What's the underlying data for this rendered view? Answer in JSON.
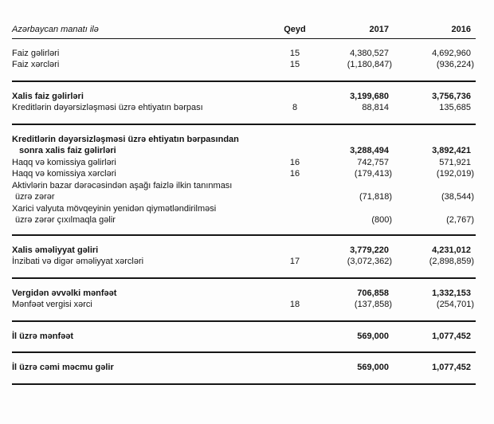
{
  "header": {
    "currency_note": "Azərbaycan manatı ilə",
    "note_col": "Qeyd",
    "year1": "2017",
    "year2": "2016"
  },
  "rows": [
    {
      "label": "Faiz gəlirləri",
      "note": "15",
      "v2017": "4,380,527",
      "v2016": "4,692,960"
    },
    {
      "label": "Faiz xərcləri",
      "note": "15",
      "v2017": "(1,180,847)",
      "v2016": "(936,224)"
    },
    {
      "label": "Xalis faiz gəlirləri",
      "note": "",
      "v2017": "3,199,680",
      "v2016": "3,756,736"
    },
    {
      "label": "Kreditlərin dəyərsizləşməsi üzrə ehtiyatın bərpası",
      "note": "8",
      "v2017": "88,814",
      "v2016": "135,685"
    },
    {
      "label": "Kreditlərin dəyərsizləşməsi üzrə ehtiyatın bərpasından",
      "label2": "sonra xalis faiz gəlirləri",
      "note": "",
      "v2017": "3,288,494",
      "v2016": "3,892,421"
    },
    {
      "label": "Haqq və komissiya gəlirləri",
      "note": "16",
      "v2017": "742,757",
      "v2016": "571,921"
    },
    {
      "label": "Haqq və komissiya xərcləri",
      "note": "16",
      "v2017": "(179,413)",
      "v2016": "(192,019)"
    },
    {
      "label": "Aktivlərin bazar dərəcəsindən aşağı faizlə ilkin tanınması",
      "label2": "üzrə zərər",
      "note": "",
      "v2017": "(71,818)",
      "v2016": "(38,544)"
    },
    {
      "label": "Xarici valyuta mövqeyinin yenidən qiymətləndirilməsi",
      "label2": "üzrə zərər çıxılmaqla gəlir",
      "note": "",
      "v2017": "(800)",
      "v2016": "(2,767)"
    },
    {
      "label": "Xalis əməliyyat gəliri",
      "note": "",
      "v2017": "3,779,220",
      "v2016": "4,231,012"
    },
    {
      "label": "İnzibati və digər əməliyyat xərcləri",
      "note": "17",
      "v2017": "(3,072,362)",
      "v2016": "(2,898,859)"
    },
    {
      "label": "Vergidən əvvəlki mənfəət",
      "note": "",
      "v2017": "706,858",
      "v2016": "1,332,153"
    },
    {
      "label": "Mənfəət vergisi xərci",
      "note": "18",
      "v2017": "(137,858)",
      "v2016": "(254,701)"
    },
    {
      "label": "İl üzrə mənfəət",
      "note": "",
      "v2017": "569,000",
      "v2016": "1,077,452"
    },
    {
      "label": "İl üzrə cəmi məcmu gəlir",
      "note": "",
      "v2017": "569,000",
      "v2016": "1,077,452"
    }
  ]
}
